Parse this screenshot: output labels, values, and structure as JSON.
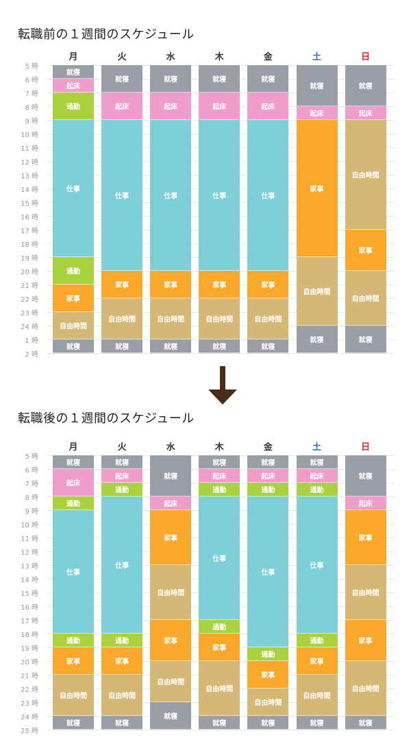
{
  "categories_colors": {
    "就寝": "#9a9ea7",
    "起床": "#f19dcc",
    "通勤": "#a9d23e",
    "仕事": "#7fcfd9",
    "家事": "#f9a82c",
    "自由時間": "#d5b876"
  },
  "day_colors": {
    "土": "#2e6fc1",
    "日": "#e0262f",
    "default": "#333333"
  },
  "arrow": {
    "icon": "arrow-down-icon",
    "color": "#4a2d17"
  },
  "chart_data": [
    {
      "type": "table",
      "title": "転職前の１週間のスケジュール",
      "days": [
        "月",
        "火",
        "水",
        "木",
        "金",
        "土",
        "日"
      ],
      "y_ticks": [
        "5 時",
        "6 時",
        "7 時",
        "8 時",
        "9 時",
        "10 時",
        "11 時",
        "12 時",
        "13 時",
        "14 時",
        "15 時",
        "16 時",
        "17 時",
        "18 時",
        "19 時",
        "20 時",
        "21 時",
        "22 時",
        "23 時",
        "24 時",
        "1 時",
        "2 時"
      ],
      "y_range_hours": [
        5,
        26
      ],
      "schedule": [
        [
          [
            5,
            6,
            "就寝"
          ],
          [
            6,
            7,
            "起床"
          ],
          [
            7,
            9,
            "通勤"
          ],
          [
            9,
            19,
            "仕事"
          ],
          [
            19,
            21,
            "通勤"
          ],
          [
            21,
            23,
            "家事"
          ],
          [
            23,
            25,
            "自由時間"
          ],
          [
            25,
            26,
            "就寝"
          ]
        ],
        [
          [
            5,
            7,
            "就寝"
          ],
          [
            7,
            9,
            "起床"
          ],
          [
            9,
            20,
            "仕事"
          ],
          [
            20,
            22,
            "家事"
          ],
          [
            22,
            25,
            "自由時間"
          ],
          [
            25,
            26,
            "就寝"
          ]
        ],
        [
          [
            5,
            7,
            "就寝"
          ],
          [
            7,
            9,
            "起床"
          ],
          [
            9,
            20,
            "仕事"
          ],
          [
            20,
            22,
            "家事"
          ],
          [
            22,
            25,
            "自由時間"
          ],
          [
            25,
            26,
            "就寝"
          ]
        ],
        [
          [
            5,
            7,
            "就寝"
          ],
          [
            7,
            9,
            "起床"
          ],
          [
            9,
            20,
            "仕事"
          ],
          [
            20,
            22,
            "家事"
          ],
          [
            22,
            25,
            "自由時間"
          ],
          [
            25,
            26,
            "就寝"
          ]
        ],
        [
          [
            5,
            7,
            "就寝"
          ],
          [
            7,
            9,
            "起床"
          ],
          [
            9,
            20,
            "仕事"
          ],
          [
            20,
            22,
            "家事"
          ],
          [
            22,
            25,
            "自由時間"
          ],
          [
            25,
            26,
            "就寝"
          ]
        ],
        [
          [
            5,
            8,
            "就寝"
          ],
          [
            8,
            9,
            "起床"
          ],
          [
            9,
            19,
            "家事"
          ],
          [
            19,
            24,
            "自由時間"
          ],
          [
            24,
            26,
            "就寝"
          ]
        ],
        [
          [
            5,
            8,
            "就寝"
          ],
          [
            8,
            9,
            "起床"
          ],
          [
            9,
            17,
            "自由時間"
          ],
          [
            17,
            20,
            "家事"
          ],
          [
            20,
            24,
            "自由時間"
          ],
          [
            24,
            26,
            "就寝"
          ]
        ]
      ]
    },
    {
      "type": "table",
      "title": "転職後の１週間のスケジュール",
      "days": [
        "月",
        "火",
        "水",
        "木",
        "金",
        "土",
        "日"
      ],
      "y_ticks": [
        "5 時",
        "6 時",
        "7 時",
        "8 時",
        "9 時",
        "10 時",
        "11 時",
        "12 時",
        "13 時",
        "14 時",
        "15 時",
        "16 時",
        "17 時",
        "18 時",
        "19 時",
        "20 時",
        "21 時",
        "22 時",
        "23 時",
        "24 時",
        "25 時"
      ],
      "y_range_hours": [
        5,
        25
      ],
      "schedule": [
        [
          [
            5,
            6,
            "就寝"
          ],
          [
            6,
            8,
            "起床"
          ],
          [
            8,
            9,
            "通勤"
          ],
          [
            9,
            18,
            "仕事"
          ],
          [
            18,
            19,
            "通勤"
          ],
          [
            19,
            21,
            "家事"
          ],
          [
            21,
            24,
            "自由時間"
          ],
          [
            24,
            25,
            "就寝"
          ]
        ],
        [
          [
            5,
            6,
            "就寝"
          ],
          [
            6,
            7,
            "起床"
          ],
          [
            7,
            8,
            "通勤"
          ],
          [
            8,
            18,
            "仕事"
          ],
          [
            18,
            19,
            "通勤"
          ],
          [
            19,
            21,
            "家事"
          ],
          [
            21,
            24,
            "自由時間"
          ],
          [
            24,
            25,
            "就寝"
          ]
        ],
        [
          [
            5,
            8,
            "就寝"
          ],
          [
            8,
            9,
            "起床"
          ],
          [
            9,
            13,
            "家事"
          ],
          [
            13,
            17,
            "自由時間"
          ],
          [
            17,
            20,
            "家事"
          ],
          [
            20,
            23,
            "自由時間"
          ],
          [
            23,
            25,
            "就寝"
          ]
        ],
        [
          [
            5,
            6,
            "就寝"
          ],
          [
            6,
            7,
            "起床"
          ],
          [
            7,
            8,
            "通勤"
          ],
          [
            8,
            17,
            "仕事"
          ],
          [
            17,
            18,
            "通勤"
          ],
          [
            18,
            20,
            "家事"
          ],
          [
            20,
            24,
            "自由時間"
          ],
          [
            24,
            25,
            "就寝"
          ]
        ],
        [
          [
            5,
            6,
            "就寝"
          ],
          [
            6,
            7,
            "起床"
          ],
          [
            7,
            8,
            "通勤"
          ],
          [
            8,
            19,
            "仕事"
          ],
          [
            19,
            20,
            "通勤"
          ],
          [
            20,
            22,
            "家事"
          ],
          [
            22,
            24,
            "自由時間"
          ],
          [
            24,
            25,
            "就寝"
          ]
        ],
        [
          [
            5,
            6,
            "就寝"
          ],
          [
            6,
            7,
            "起床"
          ],
          [
            7,
            8,
            "通勤"
          ],
          [
            8,
            18,
            "仕事"
          ],
          [
            18,
            19,
            "通勤"
          ],
          [
            19,
            21,
            "家事"
          ],
          [
            21,
            24,
            "自由時間"
          ],
          [
            24,
            25,
            "就寝"
          ]
        ],
        [
          [
            5,
            8,
            "就寝"
          ],
          [
            8,
            9,
            "起床"
          ],
          [
            9,
            13,
            "家事"
          ],
          [
            13,
            17,
            "自由時間"
          ],
          [
            17,
            20,
            "家事"
          ],
          [
            20,
            24,
            "自由時間"
          ],
          [
            24,
            25,
            "就寝"
          ]
        ]
      ]
    }
  ]
}
